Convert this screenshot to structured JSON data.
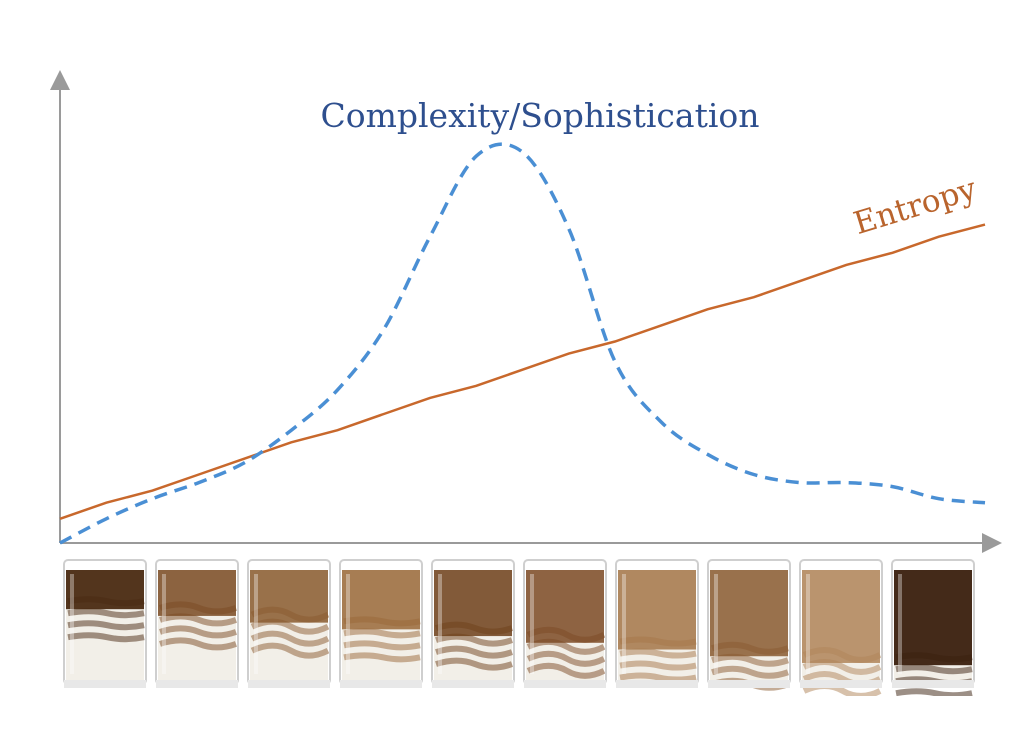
{
  "chart_data": {
    "type": "line",
    "title": "",
    "xlabel": "",
    "ylabel": "",
    "grid": false,
    "legend": "none",
    "x": [
      0,
      0.05,
      0.1,
      0.15,
      0.2,
      0.25,
      0.3,
      0.35,
      0.4,
      0.45,
      0.5,
      0.55,
      0.6,
      0.65,
      0.7,
      0.75,
      0.8,
      0.85,
      0.9,
      0.95,
      1.0
    ],
    "xlim": [
      0,
      1
    ],
    "ylim": [
      0,
      1
    ],
    "series": [
      {
        "name": "Complexity/Sophistication",
        "color": "#4a8fd4",
        "style": "dashed",
        "values": [
          0.0,
          0.06,
          0.11,
          0.15,
          0.2,
          0.28,
          0.38,
          0.53,
          0.76,
          0.96,
          0.97,
          0.78,
          0.45,
          0.3,
          0.22,
          0.17,
          0.15,
          0.15,
          0.14,
          0.11,
          0.1
        ]
      },
      {
        "name": "Entropy",
        "color": "#c8682c",
        "style": "solid",
        "values": [
          0.06,
          0.1,
          0.13,
          0.17,
          0.21,
          0.25,
          0.28,
          0.32,
          0.36,
          0.39,
          0.43,
          0.47,
          0.5,
          0.54,
          0.58,
          0.61,
          0.65,
          0.69,
          0.72,
          0.76,
          0.79
        ]
      }
    ],
    "glasses": {
      "count": 10,
      "liquid_colors": [
        "#4a2a12",
        "#7a4a22",
        "#8a5a2e",
        "#9a6838",
        "#6e3f1a",
        "#7c4a24",
        "#a57548",
        "#8a5a30",
        "#b08458",
        "#3a1f0e"
      ],
      "milk_color": "#f2efe8"
    }
  }
}
